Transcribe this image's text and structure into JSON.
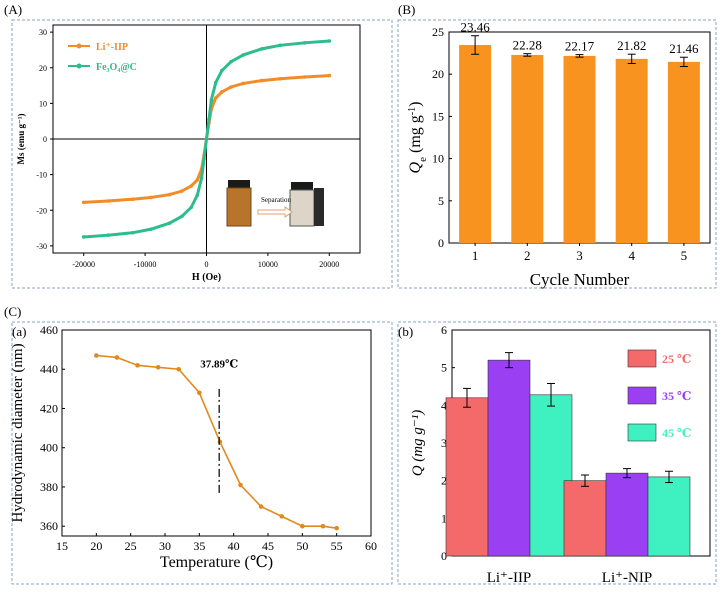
{
  "panel_labels": {
    "A": "(A)",
    "B": "(B)",
    "C": "(C)",
    "a": "(a)",
    "b": "(b)"
  },
  "chart_data": [
    {
      "id": "A",
      "type": "line",
      "title": "",
      "xlabel": "H (Oe)",
      "ylabel": "Ms (emu g⁻¹)",
      "xlim": [
        -25000,
        25000
      ],
      "ylim": [
        -32,
        32
      ],
      "xticks": [
        -20000,
        -10000,
        0,
        10000,
        20000
      ],
      "yticks": [
        -30,
        -20,
        -10,
        0,
        10,
        20,
        30
      ],
      "legend": {
        "position": "top-left",
        "entries": [
          {
            "name": "Li⁺-IIP",
            "color": "#f28c28"
          },
          {
            "name": "Fe₃O₄@C",
            "color": "#2bbd8e"
          }
        ]
      },
      "series": [
        {
          "name": "Li⁺-IIP",
          "color": "#f28c28",
          "x": [
            -20000,
            -16000,
            -12000,
            -9000,
            -6000,
            -4000,
            -2500,
            -1500,
            -800,
            -400,
            0,
            400,
            800,
            1500,
            2500,
            4000,
            6000,
            9000,
            12000,
            16000,
            20000
          ],
          "y": [
            -17.8,
            -17.4,
            -16.9,
            -16.4,
            -15.6,
            -14.6,
            -13.2,
            -11.5,
            -8.5,
            -4.5,
            0,
            4.5,
            8.5,
            11.5,
            13.2,
            14.6,
            15.6,
            16.4,
            16.9,
            17.4,
            17.8
          ]
        },
        {
          "name": "Fe₃O₄@C",
          "color": "#2bbd8e",
          "x": [
            -20000,
            -16000,
            -12000,
            -9000,
            -6000,
            -4000,
            -2500,
            -1500,
            -800,
            -400,
            0,
            400,
            800,
            1500,
            2500,
            4000,
            6000,
            9000,
            12000,
            16000,
            20000
          ],
          "y": [
            -27.5,
            -27.0,
            -26.3,
            -25.3,
            -23.6,
            -21.7,
            -19.2,
            -15.8,
            -11.0,
            -5.5,
            0,
            5.5,
            11.0,
            15.8,
            19.2,
            21.7,
            23.6,
            25.3,
            26.3,
            27.0,
            27.5
          ]
        }
      ],
      "inset": {
        "arrow_label": "Separation"
      }
    },
    {
      "id": "B",
      "type": "bar",
      "xlabel": "Cycle Number",
      "ylabel": "Qe (mg g⁻¹)",
      "ylabel_main": "Q",
      "ylabel_sub": "e",
      "ylabel_unit": " (mg g",
      "ylabel_sup": "-1",
      "ylabel_close": ")",
      "ylim": [
        0,
        25
      ],
      "yticks": [
        0,
        5,
        10,
        15,
        20,
        25
      ],
      "categories": [
        "1",
        "2",
        "3",
        "4",
        "5"
      ],
      "values": [
        23.46,
        22.28,
        22.17,
        21.82,
        21.46
      ],
      "errors": [
        1.1,
        0.15,
        0.15,
        0.55,
        0.55
      ],
      "labels": [
        "23.46",
        "22.28",
        "22.17",
        "21.82",
        "21.46"
      ],
      "color": "#f7931e"
    },
    {
      "id": "a",
      "type": "line",
      "xlabel": "Temperature (℃)",
      "ylabel": "Hydrodynamic diameter (nm)",
      "xlim": [
        15,
        60
      ],
      "ylim": [
        355,
        460
      ],
      "xticks": [
        15,
        20,
        25,
        30,
        35,
        40,
        45,
        50,
        55,
        60
      ],
      "yticks": [
        360,
        380,
        400,
        420,
        440,
        460
      ],
      "annotation": "37.89℃",
      "vline_x": 37.89,
      "color": "#e08a1e",
      "x": [
        20,
        23,
        26,
        29,
        32,
        35,
        38,
        41,
        44,
        47,
        50,
        53,
        55
      ],
      "y": [
        447,
        446,
        442,
        441,
        440,
        428,
        403,
        381,
        370,
        365,
        360,
        360,
        359
      ]
    },
    {
      "id": "b",
      "type": "bar",
      "xlabel": "",
      "ylabel": "Q (mg g⁻¹)",
      "ylim": [
        0,
        6
      ],
      "yticks": [
        0,
        1,
        2,
        3,
        4,
        5,
        6
      ],
      "categories": [
        "Li⁺-IIP",
        "Li⁺-NIP"
      ],
      "series": [
        {
          "name": "25 ℃",
          "color": "#f46a6a",
          "values": [
            4.2,
            2.0
          ],
          "errors": [
            0.25,
            0.15
          ]
        },
        {
          "name": "35 ℃",
          "color": "#9b3ff2",
          "values": [
            5.2,
            2.2
          ],
          "errors": [
            0.2,
            0.12
          ]
        },
        {
          "name": "45 ℃",
          "color": "#3ff0c0",
          "values": [
            4.28,
            2.1
          ],
          "errors": [
            0.3,
            0.15
          ]
        }
      ],
      "legend": {
        "position": "top-right"
      }
    }
  ]
}
